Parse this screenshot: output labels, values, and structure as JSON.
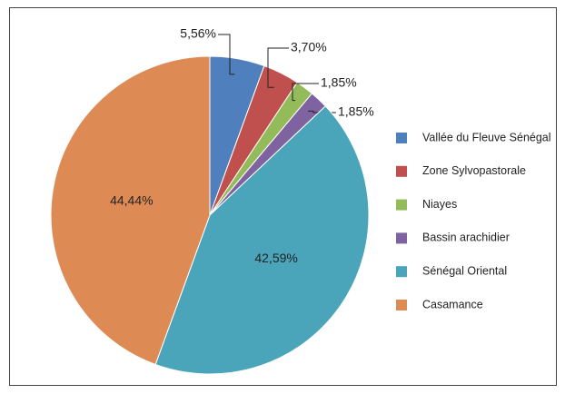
{
  "chart_data": {
    "type": "pie",
    "categories": [
      "Vallée du Fleuve Sénégal",
      "Zone Sylvopastorale",
      "Niayes",
      "Bassin arachidier",
      "Sénégal Oriental",
      "Casamance"
    ],
    "values": [
      5.56,
      3.7,
      1.85,
      1.85,
      42.59,
      44.44
    ],
    "value_labels": [
      "5,56%",
      "3,70%",
      "1,85%",
      "1,85%",
      "42,59%",
      "44,44%"
    ],
    "colors": [
      "#4f7fbc",
      "#c0504d",
      "#94bb5a",
      "#7f63a1",
      "#4aa5bb",
      "#de8a55"
    ],
    "legend": "right"
  }
}
